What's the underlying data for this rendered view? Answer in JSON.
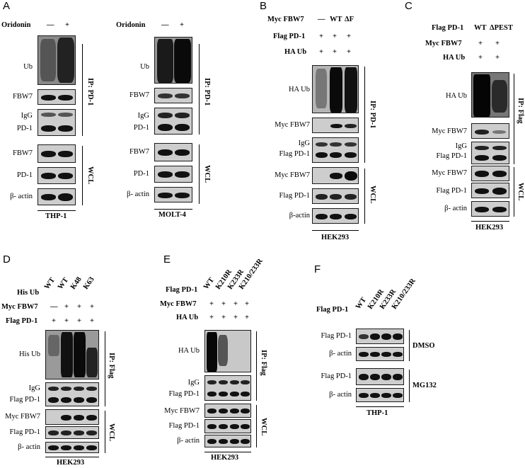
{
  "panels": {
    "A": {
      "letter": "A",
      "treatment": "Oridonin",
      "signs": [
        "—",
        "+"
      ],
      "rows": [
        "Ub",
        "FBW7",
        "IgG",
        "PD-1",
        "FBW7",
        "PD-1",
        "β- actin"
      ],
      "ip": "IP: PD-1",
      "wcl": "WCL",
      "cells_left": "THP-1",
      "cells_right": "MOLT-4"
    },
    "B": {
      "letter": "B",
      "myc": "Myc FBW7",
      "flag": "Flag PD-1",
      "ha": "HA Ub",
      "lanes": [
        "—",
        "WT",
        "ΔF"
      ],
      "plus": "+",
      "rows": [
        "HA Ub",
        "Myc FBW7",
        "IgG",
        "Flag PD-1",
        "Myc FBW7",
        "Flag PD-1",
        "β-actin"
      ],
      "ip": "IP: PD-1",
      "wcl": "WCL",
      "cells": "HEK293"
    },
    "C": {
      "letter": "C",
      "flag": "Flag PD-1",
      "myc": "Myc FBW7",
      "ha": "HA Ub",
      "lanes": [
        "WT",
        "ΔPEST"
      ],
      "plus": "+",
      "rows": [
        "HA Ub",
        "Myc FBW7",
        "IgG",
        "Flag PD-1",
        "Myc FBW7",
        "Flag PD-1",
        "β- actin"
      ],
      "ip": "IP: Flag",
      "wcl": "WCL",
      "cells": "HEK293"
    },
    "D": {
      "letter": "D",
      "his": "His Ub",
      "myc": "Myc FBW7",
      "flag": "Flag PD-1",
      "lanes": [
        "WT",
        "WT",
        "K48",
        "K63"
      ],
      "minus": "—",
      "plus": "+",
      "rows": [
        "His Ub",
        "IgG",
        "Flag PD-1",
        "Myc FBW7",
        "Flag PD-1",
        "β- actin"
      ],
      "ip": "IP: Flag",
      "wcl": "WCL",
      "cells": "HEK293"
    },
    "E": {
      "letter": "E",
      "flag": "Flag PD-1",
      "myc": "Myc FBW7",
      "ha": "HA Ub",
      "lanes": [
        "WT",
        "K210R",
        "K233R",
        "K210/233R"
      ],
      "plus": "+",
      "rows": [
        "HA Ub",
        "IgG",
        "Flag PD-1",
        "Myc FBW7",
        "Flag PD-1",
        "β- actin"
      ],
      "ip": "IP: Flag",
      "wcl": "WCL",
      "cells": "HEK293"
    },
    "F": {
      "letter": "F",
      "flag": "Flag PD-1",
      "lanes": [
        "WT",
        "K210R",
        "K233R",
        "K210/233R"
      ],
      "rows": [
        "Flag PD-1",
        "β- actin",
        "Flag PD-1",
        "β- actin"
      ],
      "dmso": "DMSO",
      "mg132": "MG132",
      "cells": "THP-1"
    }
  }
}
